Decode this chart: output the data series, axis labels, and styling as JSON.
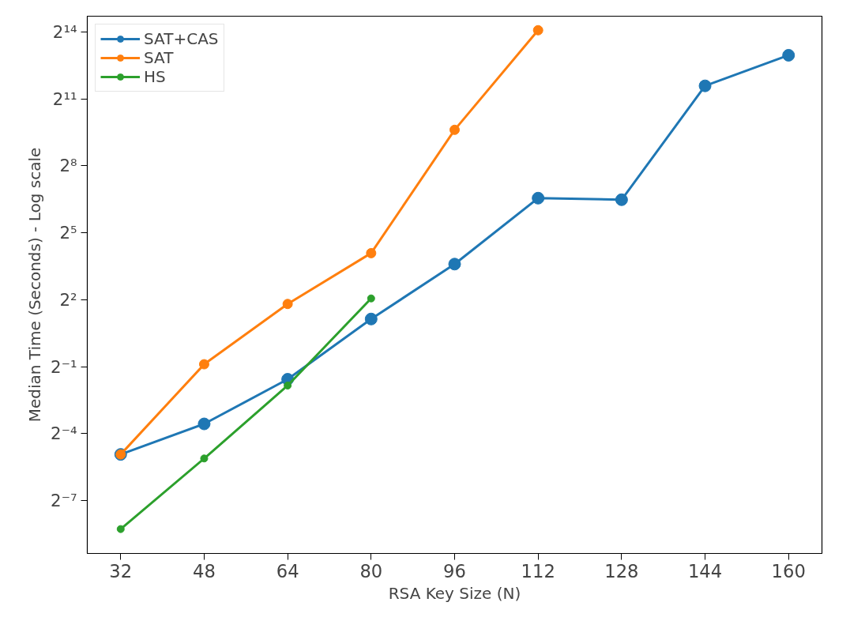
{
  "chart_data": {
    "type": "line",
    "xlabel": "RSA Key Size (N)",
    "ylabel": "Median Time (Seconds) - Log scale",
    "log": "y",
    "grid": false,
    "legend": "top left",
    "marker": "circle",
    "line_style": "solid",
    "xlim": [
      25.6,
      166.4
    ],
    "xticks": [
      32,
      48,
      64,
      80,
      96,
      112,
      128,
      144,
      160
    ],
    "ylim": [
      0.00152,
      26600
    ],
    "yticks": [
      {
        "value": 0.0078125,
        "label": "2⁻⁷"
      },
      {
        "value": 0.0625,
        "label": "2⁻⁴"
      },
      {
        "value": 0.5,
        "label": "2⁻¹"
      },
      {
        "value": 4,
        "label": "2²"
      },
      {
        "value": 32,
        "label": "2⁵"
      },
      {
        "value": 256,
        "label": "2⁸"
      },
      {
        "value": 2048,
        "label": "2¹¹"
      },
      {
        "value": 16384,
        "label": "2¹⁴"
      }
    ],
    "series": [
      {
        "name": "SAT+CAS",
        "color": "#1f77b4",
        "x": [
          32,
          48,
          64,
          80,
          96,
          112,
          128,
          144,
          160
        ],
        "values": [
          0.0329,
          0.0848,
          0.339,
          2.2,
          12.1,
          93.7,
          89.3,
          3061,
          7912
        ]
      },
      {
        "name": "SAT",
        "color": "#ff7f0e",
        "x": [
          32,
          48,
          64,
          80,
          96,
          112
        ],
        "values": [
          0.0329,
          0.54,
          3.51,
          17.0,
          781,
          17200
        ]
      },
      {
        "name": "HS",
        "color": "#2ca02c",
        "x": [
          32,
          48,
          64,
          80
        ],
        "values": [
          0.00324,
          0.029,
          0.279,
          4.17
        ]
      }
    ]
  }
}
